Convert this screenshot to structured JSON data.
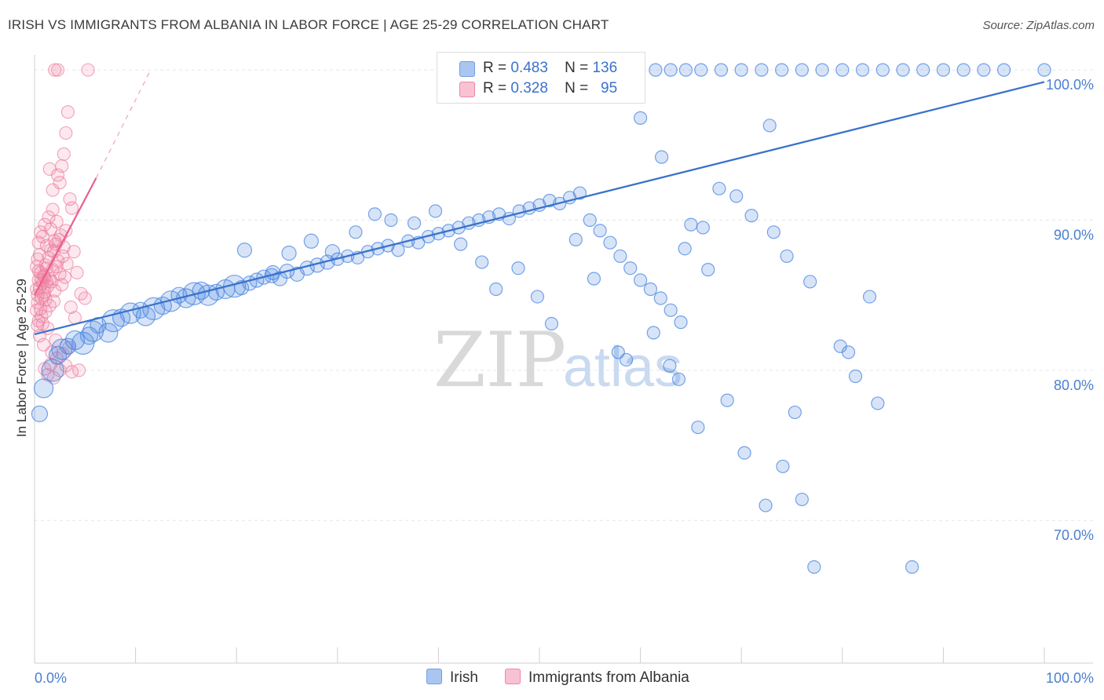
{
  "title": "IRISH VS IMMIGRANTS FROM ALBANIA IN LABOR FORCE | AGE 25-29 CORRELATION CHART",
  "source": "Source: ZipAtlas.com",
  "watermark": {
    "zip": "ZIP",
    "atlas": "atlas"
  },
  "legend": {
    "rows": [
      {
        "r_label": "R =",
        "r_value": "0.483",
        "n_label": "N =",
        "n_value": "136",
        "color": "#6f9de0"
      },
      {
        "r_label": "R =",
        "r_value": "0.328",
        "n_label": "N =",
        "n_value": "95",
        "color": "#ef86a6"
      }
    ]
  },
  "bottom_legend": [
    {
      "label": "Irish",
      "color": "#6f9de0"
    },
    {
      "label": "Immigrants from Albania",
      "color": "#ef86a6"
    }
  ],
  "chart_data": {
    "type": "scatter",
    "xlabel": "",
    "ylabel": "In Labor Force | Age 25-29",
    "x_tick_labels": [
      "0.0%",
      "100.0%"
    ],
    "y_tick_labels": [
      "70.0%",
      "80.0%",
      "90.0%",
      "100.0%"
    ],
    "xlim": [
      0,
      100
    ],
    "ylim": [
      60.5,
      101.0
    ],
    "grid": true,
    "colors": {
      "irish": "#4a86e0",
      "albania": "#ee7ea0",
      "irish_line": "#3a72cc",
      "albania_line": "#e9608b"
    },
    "series": [
      {
        "name": "Irish",
        "trend": {
          "x": [
            0,
            100
          ],
          "y": [
            82.4,
            99.2
          ],
          "style": "solid"
        },
        "points": [
          [
            0.5,
            77.1
          ],
          [
            0.9,
            78.8
          ],
          [
            1.8,
            80.0
          ],
          [
            2.3,
            81.0
          ],
          [
            2.7,
            81.4
          ],
          [
            3.3,
            81.6
          ],
          [
            4.0,
            82.0
          ],
          [
            4.8,
            81.8
          ],
          [
            5.4,
            82.3
          ],
          [
            5.8,
            82.6
          ],
          [
            6.3,
            83.0
          ],
          [
            7.3,
            82.5
          ],
          [
            7.8,
            83.3
          ],
          [
            8.6,
            83.5
          ],
          [
            9.5,
            83.8
          ],
          [
            10.5,
            84.0
          ],
          [
            11.0,
            83.6
          ],
          [
            11.8,
            84.1
          ],
          [
            12.7,
            84.3
          ],
          [
            13.5,
            84.6
          ],
          [
            14.3,
            85.0
          ],
          [
            15.0,
            84.8
          ],
          [
            15.8,
            85.1
          ],
          [
            16.5,
            85.3
          ],
          [
            17.2,
            85.0
          ],
          [
            18.0,
            85.2
          ],
          [
            18.9,
            85.4
          ],
          [
            19.8,
            85.6
          ],
          [
            20.5,
            85.5
          ],
          [
            21.3,
            85.8
          ],
          [
            22.0,
            86.0
          ],
          [
            22.7,
            86.2
          ],
          [
            23.5,
            86.3
          ],
          [
            24.3,
            86.1
          ],
          [
            25.0,
            86.6
          ],
          [
            26.0,
            86.4
          ],
          [
            27.0,
            86.8
          ],
          [
            28.0,
            87.0
          ],
          [
            29.0,
            87.2
          ],
          [
            30.0,
            87.4
          ],
          [
            31.0,
            87.6
          ],
          [
            32.0,
            87.5
          ],
          [
            33.0,
            87.9
          ],
          [
            34.0,
            88.1
          ],
          [
            35.0,
            88.3
          ],
          [
            36.0,
            88.0
          ],
          [
            37.0,
            88.6
          ],
          [
            38.0,
            88.5
          ],
          [
            39.0,
            88.9
          ],
          [
            40.0,
            89.1
          ],
          [
            41.0,
            89.3
          ],
          [
            42.0,
            89.5
          ],
          [
            43.0,
            89.8
          ],
          [
            44.0,
            90.0
          ],
          [
            45.0,
            90.2
          ],
          [
            46.0,
            90.4
          ],
          [
            47.0,
            90.1
          ],
          [
            48.0,
            90.6
          ],
          [
            49.0,
            90.8
          ],
          [
            50.0,
            91.0
          ],
          [
            51.0,
            91.3
          ],
          [
            52.0,
            91.1
          ],
          [
            53.0,
            91.5
          ],
          [
            54.0,
            91.8
          ],
          [
            55.0,
            90.0
          ],
          [
            56.0,
            89.3
          ],
          [
            57.0,
            88.5
          ],
          [
            58.0,
            87.6
          ],
          [
            59.0,
            86.8
          ],
          [
            60.0,
            86.0
          ],
          [
            61.0,
            85.4
          ],
          [
            62.0,
            84.8
          ],
          [
            63.0,
            84.0
          ],
          [
            64.0,
            83.2
          ],
          [
            20.8,
            88.0
          ],
          [
            23.6,
            86.5
          ],
          [
            25.2,
            87.8
          ],
          [
            27.4,
            88.6
          ],
          [
            29.5,
            87.9
          ],
          [
            31.8,
            89.2
          ],
          [
            33.7,
            90.4
          ],
          [
            35.3,
            90.0
          ],
          [
            37.6,
            89.8
          ],
          [
            39.7,
            90.6
          ],
          [
            42.2,
            88.4
          ],
          [
            44.3,
            87.2
          ],
          [
            45.7,
            85.4
          ],
          [
            47.9,
            86.8
          ],
          [
            49.8,
            84.9
          ],
          [
            51.2,
            83.1
          ],
          [
            53.6,
            88.7
          ],
          [
            55.4,
            86.1
          ],
          [
            57.8,
            81.2
          ],
          [
            58.6,
            80.7
          ],
          [
            60.0,
            96.8
          ],
          [
            62.1,
            94.2
          ],
          [
            65.0,
            89.7
          ],
          [
            66.7,
            86.7
          ],
          [
            68.6,
            78.0
          ],
          [
            70.3,
            74.5
          ],
          [
            72.4,
            71.0
          ],
          [
            74.1,
            73.6
          ],
          [
            75.3,
            77.2
          ],
          [
            76.0,
            71.4
          ],
          [
            77.2,
            66.9
          ],
          [
            79.8,
            81.6
          ],
          [
            80.6,
            81.2
          ],
          [
            81.3,
            79.6
          ],
          [
            82.7,
            84.9
          ],
          [
            83.5,
            77.8
          ],
          [
            86.9,
            66.9
          ],
          [
            72.8,
            96.3
          ],
          [
            66.2,
            89.5
          ],
          [
            64.4,
            88.1
          ],
          [
            67.8,
            92.1
          ],
          [
            69.5,
            91.6
          ],
          [
            71.0,
            90.3
          ],
          [
            73.2,
            89.2
          ],
          [
            74.5,
            87.6
          ],
          [
            76.8,
            85.9
          ],
          [
            62.9,
            80.3
          ],
          [
            61.3,
            82.5
          ],
          [
            63.8,
            79.4
          ],
          [
            65.7,
            76.2
          ],
          [
            61.5,
            100.0
          ],
          [
            63.0,
            100.0
          ],
          [
            64.5,
            100.0
          ],
          [
            66.0,
            100.0
          ],
          [
            68.0,
            100.0
          ],
          [
            70.0,
            100.0
          ],
          [
            72.0,
            100.0
          ],
          [
            74.0,
            100.0
          ],
          [
            76.0,
            100.0
          ],
          [
            78.0,
            100.0
          ],
          [
            80.0,
            100.0
          ],
          [
            82.0,
            100.0
          ],
          [
            84.0,
            100.0
          ],
          [
            86.0,
            100.0
          ],
          [
            88.0,
            100.0
          ],
          [
            90.0,
            100.0
          ],
          [
            92.0,
            100.0
          ],
          [
            94.0,
            100.0
          ],
          [
            96.0,
            100.0
          ],
          [
            100.0,
            100.0
          ]
        ]
      },
      {
        "name": "Immigrants from Albania",
        "trend": {
          "x": [
            0,
            6.1
          ],
          "y": [
            85.0,
            92.8
          ],
          "style": "solid",
          "extension": {
            "x": [
              6.1,
              11.5
            ],
            "y": [
              92.8,
              100.0
            ],
            "style": "dashed"
          }
        },
        "points": [
          [
            0.3,
            85.0
          ],
          [
            0.4,
            86.0
          ],
          [
            0.5,
            85.5
          ],
          [
            0.6,
            86.5
          ],
          [
            0.7,
            84.8
          ],
          [
            0.8,
            85.8
          ],
          [
            0.9,
            86.3
          ],
          [
            1.0,
            85.2
          ],
          [
            1.1,
            87.0
          ],
          [
            1.2,
            86.8
          ],
          [
            1.3,
            85.6
          ],
          [
            1.4,
            87.5
          ],
          [
            1.5,
            86.1
          ],
          [
            1.6,
            88.0
          ],
          [
            1.7,
            85.9
          ],
          [
            1.8,
            86.7
          ],
          [
            1.9,
            87.9
          ],
          [
            2.0,
            85.3
          ],
          [
            2.1,
            88.4
          ],
          [
            2.2,
            86.9
          ],
          [
            2.3,
            87.3
          ],
          [
            2.4,
            88.7
          ],
          [
            2.5,
            86.4
          ],
          [
            2.6,
            89.0
          ],
          [
            2.7,
            85.7
          ],
          [
            2.8,
            87.6
          ],
          [
            2.9,
            88.2
          ],
          [
            3.0,
            86.2
          ],
          [
            3.1,
            89.3
          ],
          [
            3.2,
            87.1
          ],
          [
            0.3,
            83.0
          ],
          [
            0.5,
            82.3
          ],
          [
            0.7,
            83.6
          ],
          [
            0.9,
            81.7
          ],
          [
            1.1,
            83.9
          ],
          [
            1.3,
            82.8
          ],
          [
            1.5,
            84.3
          ],
          [
            1.7,
            81.2
          ],
          [
            1.9,
            84.6
          ],
          [
            2.1,
            82.0
          ],
          [
            0.4,
            88.5
          ],
          [
            0.6,
            89.2
          ],
          [
            0.8,
            88.9
          ],
          [
            1.0,
            89.7
          ],
          [
            1.2,
            88.3
          ],
          [
            1.4,
            90.2
          ],
          [
            1.6,
            89.4
          ],
          [
            1.8,
            90.7
          ],
          [
            2.0,
            88.6
          ],
          [
            2.2,
            89.9
          ],
          [
            1.0,
            80.1
          ],
          [
            1.3,
            79.7
          ],
          [
            1.6,
            80.4
          ],
          [
            1.9,
            79.5
          ],
          [
            2.2,
            80.8
          ],
          [
            2.5,
            80.0
          ],
          [
            2.8,
            81.1
          ],
          [
            3.1,
            80.3
          ],
          [
            3.4,
            81.5
          ],
          [
            3.7,
            79.9
          ],
          [
            2.3,
            93.0
          ],
          [
            2.5,
            92.5
          ],
          [
            2.7,
            93.6
          ],
          [
            2.9,
            94.4
          ],
          [
            3.1,
            95.8
          ],
          [
            3.3,
            97.2
          ],
          [
            3.5,
            91.4
          ],
          [
            3.7,
            90.8
          ],
          [
            1.5,
            93.4
          ],
          [
            1.8,
            92.0
          ],
          [
            2.0,
            100.0
          ],
          [
            2.3,
            100.0
          ],
          [
            5.3,
            100.0
          ],
          [
            5.0,
            84.8
          ],
          [
            4.4,
            80.0
          ],
          [
            4.0,
            83.5
          ],
          [
            3.6,
            84.2
          ],
          [
            4.2,
            86.5
          ],
          [
            4.6,
            85.1
          ],
          [
            3.9,
            87.9
          ],
          [
            0.2,
            84.0
          ],
          [
            0.2,
            86.9
          ],
          [
            0.2,
            85.4
          ],
          [
            0.3,
            87.4
          ],
          [
            0.3,
            84.5
          ],
          [
            0.4,
            83.3
          ],
          [
            0.4,
            86.6
          ],
          [
            0.5,
            87.7
          ],
          [
            0.6,
            84.1
          ],
          [
            0.7,
            86.0
          ],
          [
            0.8,
            83.1
          ],
          [
            0.9,
            85.0
          ],
          [
            1.0,
            86.2
          ],
          [
            1.1,
            84.7
          ],
          [
            1.2,
            85.9
          ]
        ]
      }
    ]
  }
}
